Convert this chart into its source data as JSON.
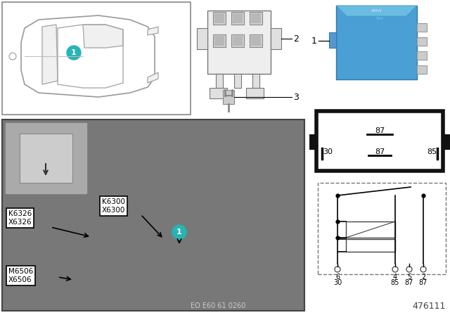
{
  "bg_color": "#ffffff",
  "teal_circle": "#28b4b4",
  "relay_blue": "#4a9fd4",
  "bottom_ref": "EO E60 61 0260",
  "part_number": "476111",
  "relay_pins_top": "87",
  "relay_pins_mid_l": "30",
  "relay_pins_mid_c": "87",
  "relay_pins_mid_r": "85",
  "circuit_pins_top": [
    "6",
    "4",
    "5",
    "2"
  ],
  "circuit_pins_bot": [
    "30",
    "85",
    "87",
    "87"
  ]
}
